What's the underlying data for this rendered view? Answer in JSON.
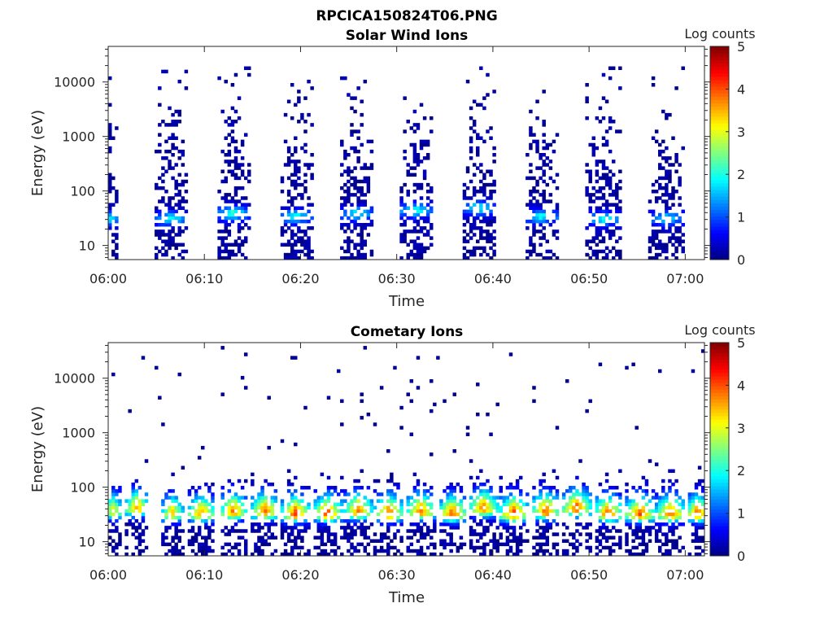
{
  "figure": {
    "title": "RPCICA150824T06.PNG",
    "background": "#ffffff"
  },
  "chart_data": [
    {
      "type": "heatmap",
      "title": "Solar Wind Ions",
      "xlabel": "Time",
      "ylabel": "Energy (eV)",
      "y_scale": "log",
      "xlim": [
        "06:00",
        "07:02"
      ],
      "ylim": [
        5.5,
        45000
      ],
      "x_ticks": [
        "06:00",
        "06:10",
        "06:20",
        "06:30",
        "06:40",
        "06:50",
        "07:00"
      ],
      "y_ticks": [
        "10",
        "100",
        "1000",
        "10000"
      ],
      "colorbar": {
        "label": "Log counts",
        "range": [
          0,
          5
        ],
        "ticks": [
          "0",
          "1",
          "2",
          "3",
          "4",
          "5"
        ],
        "colormap": "jet"
      },
      "grid": false,
      "bursts": [
        {
          "center_min": 0.0,
          "width_min": 1.6,
          "peak_energy_eV": 32,
          "peak_log_counts": 1.8,
          "max_energy_eV": 15000
        },
        {
          "center_min": 6.5,
          "width_min": 3.0,
          "peak_energy_eV": 32,
          "peak_log_counts": 1.8,
          "max_energy_eV": 20000
        },
        {
          "center_min": 13.0,
          "width_min": 3.0,
          "peak_energy_eV": 40,
          "peak_log_counts": 2.0,
          "max_energy_eV": 20000
        },
        {
          "center_min": 19.5,
          "width_min": 3.0,
          "peak_energy_eV": 35,
          "peak_log_counts": 1.8,
          "max_energy_eV": 20000
        },
        {
          "center_min": 25.8,
          "width_min": 3.0,
          "peak_energy_eV": 40,
          "peak_log_counts": 1.8,
          "max_energy_eV": 30000
        },
        {
          "center_min": 32.0,
          "width_min": 3.0,
          "peak_energy_eV": 45,
          "peak_log_counts": 1.9,
          "max_energy_eV": 20000
        },
        {
          "center_min": 38.5,
          "width_min": 3.0,
          "peak_energy_eV": 50,
          "peak_log_counts": 1.8,
          "max_energy_eV": 20000
        },
        {
          "center_min": 45.0,
          "width_min": 3.0,
          "peak_energy_eV": 35,
          "peak_log_counts": 1.8,
          "max_energy_eV": 20000
        },
        {
          "center_min": 51.5,
          "width_min": 3.2,
          "peak_energy_eV": 32,
          "peak_log_counts": 1.8,
          "max_energy_eV": 20000
        },
        {
          "center_min": 58.0,
          "width_min": 3.2,
          "peak_energy_eV": 32,
          "peak_log_counts": 1.6,
          "max_energy_eV": 20000
        }
      ]
    },
    {
      "type": "heatmap",
      "title": "Cometary Ions",
      "xlabel": "Time",
      "ylabel": "Energy (eV)",
      "y_scale": "log",
      "xlim": [
        "06:00",
        "07:02"
      ],
      "ylim": [
        5.5,
        45000
      ],
      "x_ticks": [
        "06:00",
        "06:10",
        "06:20",
        "06:30",
        "06:40",
        "06:50",
        "07:00"
      ],
      "y_ticks": [
        "10",
        "100",
        "1000",
        "10000"
      ],
      "colorbar": {
        "label": "Log counts",
        "range": [
          0,
          5
        ],
        "ticks": [
          "0",
          "1",
          "2",
          "3",
          "4",
          "5"
        ],
        "colormap": "jet"
      },
      "grid": false,
      "band": {
        "peak_energy_eV": 32,
        "energy_range_eV": [
          10,
          200
        ],
        "peak_log_counts": 3.8
      },
      "bursts": [
        {
          "center_min": 0.5,
          "width_min": 1.8,
          "peak_energy_eV": 35,
          "peak_log_counts": 3.0
        },
        {
          "center_min": 3.0,
          "width_min": 2.2,
          "peak_energy_eV": 40,
          "peak_log_counts": 3.5
        },
        {
          "center_min": 6.7,
          "width_min": 2.0,
          "peak_energy_eV": 32,
          "peak_log_counts": 3.3
        },
        {
          "center_min": 9.7,
          "width_min": 2.5,
          "peak_energy_eV": 32,
          "peak_log_counts": 3.6
        },
        {
          "center_min": 13.0,
          "width_min": 2.5,
          "peak_energy_eV": 35,
          "peak_log_counts": 3.7
        },
        {
          "center_min": 16.3,
          "width_min": 2.5,
          "peak_energy_eV": 35,
          "peak_log_counts": 3.8
        },
        {
          "center_min": 19.5,
          "width_min": 2.6,
          "peak_energy_eV": 32,
          "peak_log_counts": 3.9
        },
        {
          "center_min": 22.8,
          "width_min": 2.6,
          "peak_energy_eV": 32,
          "peak_log_counts": 3.9
        },
        {
          "center_min": 26.0,
          "width_min": 2.6,
          "peak_energy_eV": 35,
          "peak_log_counts": 3.7
        },
        {
          "center_min": 29.2,
          "width_min": 2.6,
          "peak_energy_eV": 32,
          "peak_log_counts": 3.8
        },
        {
          "center_min": 32.5,
          "width_min": 2.6,
          "peak_energy_eV": 35,
          "peak_log_counts": 3.7
        },
        {
          "center_min": 35.8,
          "width_min": 2.6,
          "peak_energy_eV": 32,
          "peak_log_counts": 3.8
        },
        {
          "center_min": 39.0,
          "width_min": 2.6,
          "peak_energy_eV": 40,
          "peak_log_counts": 3.7
        },
        {
          "center_min": 42.2,
          "width_min": 2.6,
          "peak_energy_eV": 32,
          "peak_log_counts": 3.9
        },
        {
          "center_min": 45.5,
          "width_min": 2.6,
          "peak_energy_eV": 35,
          "peak_log_counts": 3.8
        },
        {
          "center_min": 48.7,
          "width_min": 2.6,
          "peak_energy_eV": 40,
          "peak_log_counts": 3.9
        },
        {
          "center_min": 52.0,
          "width_min": 2.6,
          "peak_energy_eV": 32,
          "peak_log_counts": 3.8
        },
        {
          "center_min": 55.3,
          "width_min": 2.6,
          "peak_energy_eV": 32,
          "peak_log_counts": 3.9
        },
        {
          "center_min": 58.5,
          "width_min": 2.6,
          "peak_energy_eV": 32,
          "peak_log_counts": 3.8
        },
        {
          "center_min": 61.3,
          "width_min": 2.0,
          "peak_energy_eV": 32,
          "peak_log_counts": 3.9
        }
      ]
    }
  ]
}
